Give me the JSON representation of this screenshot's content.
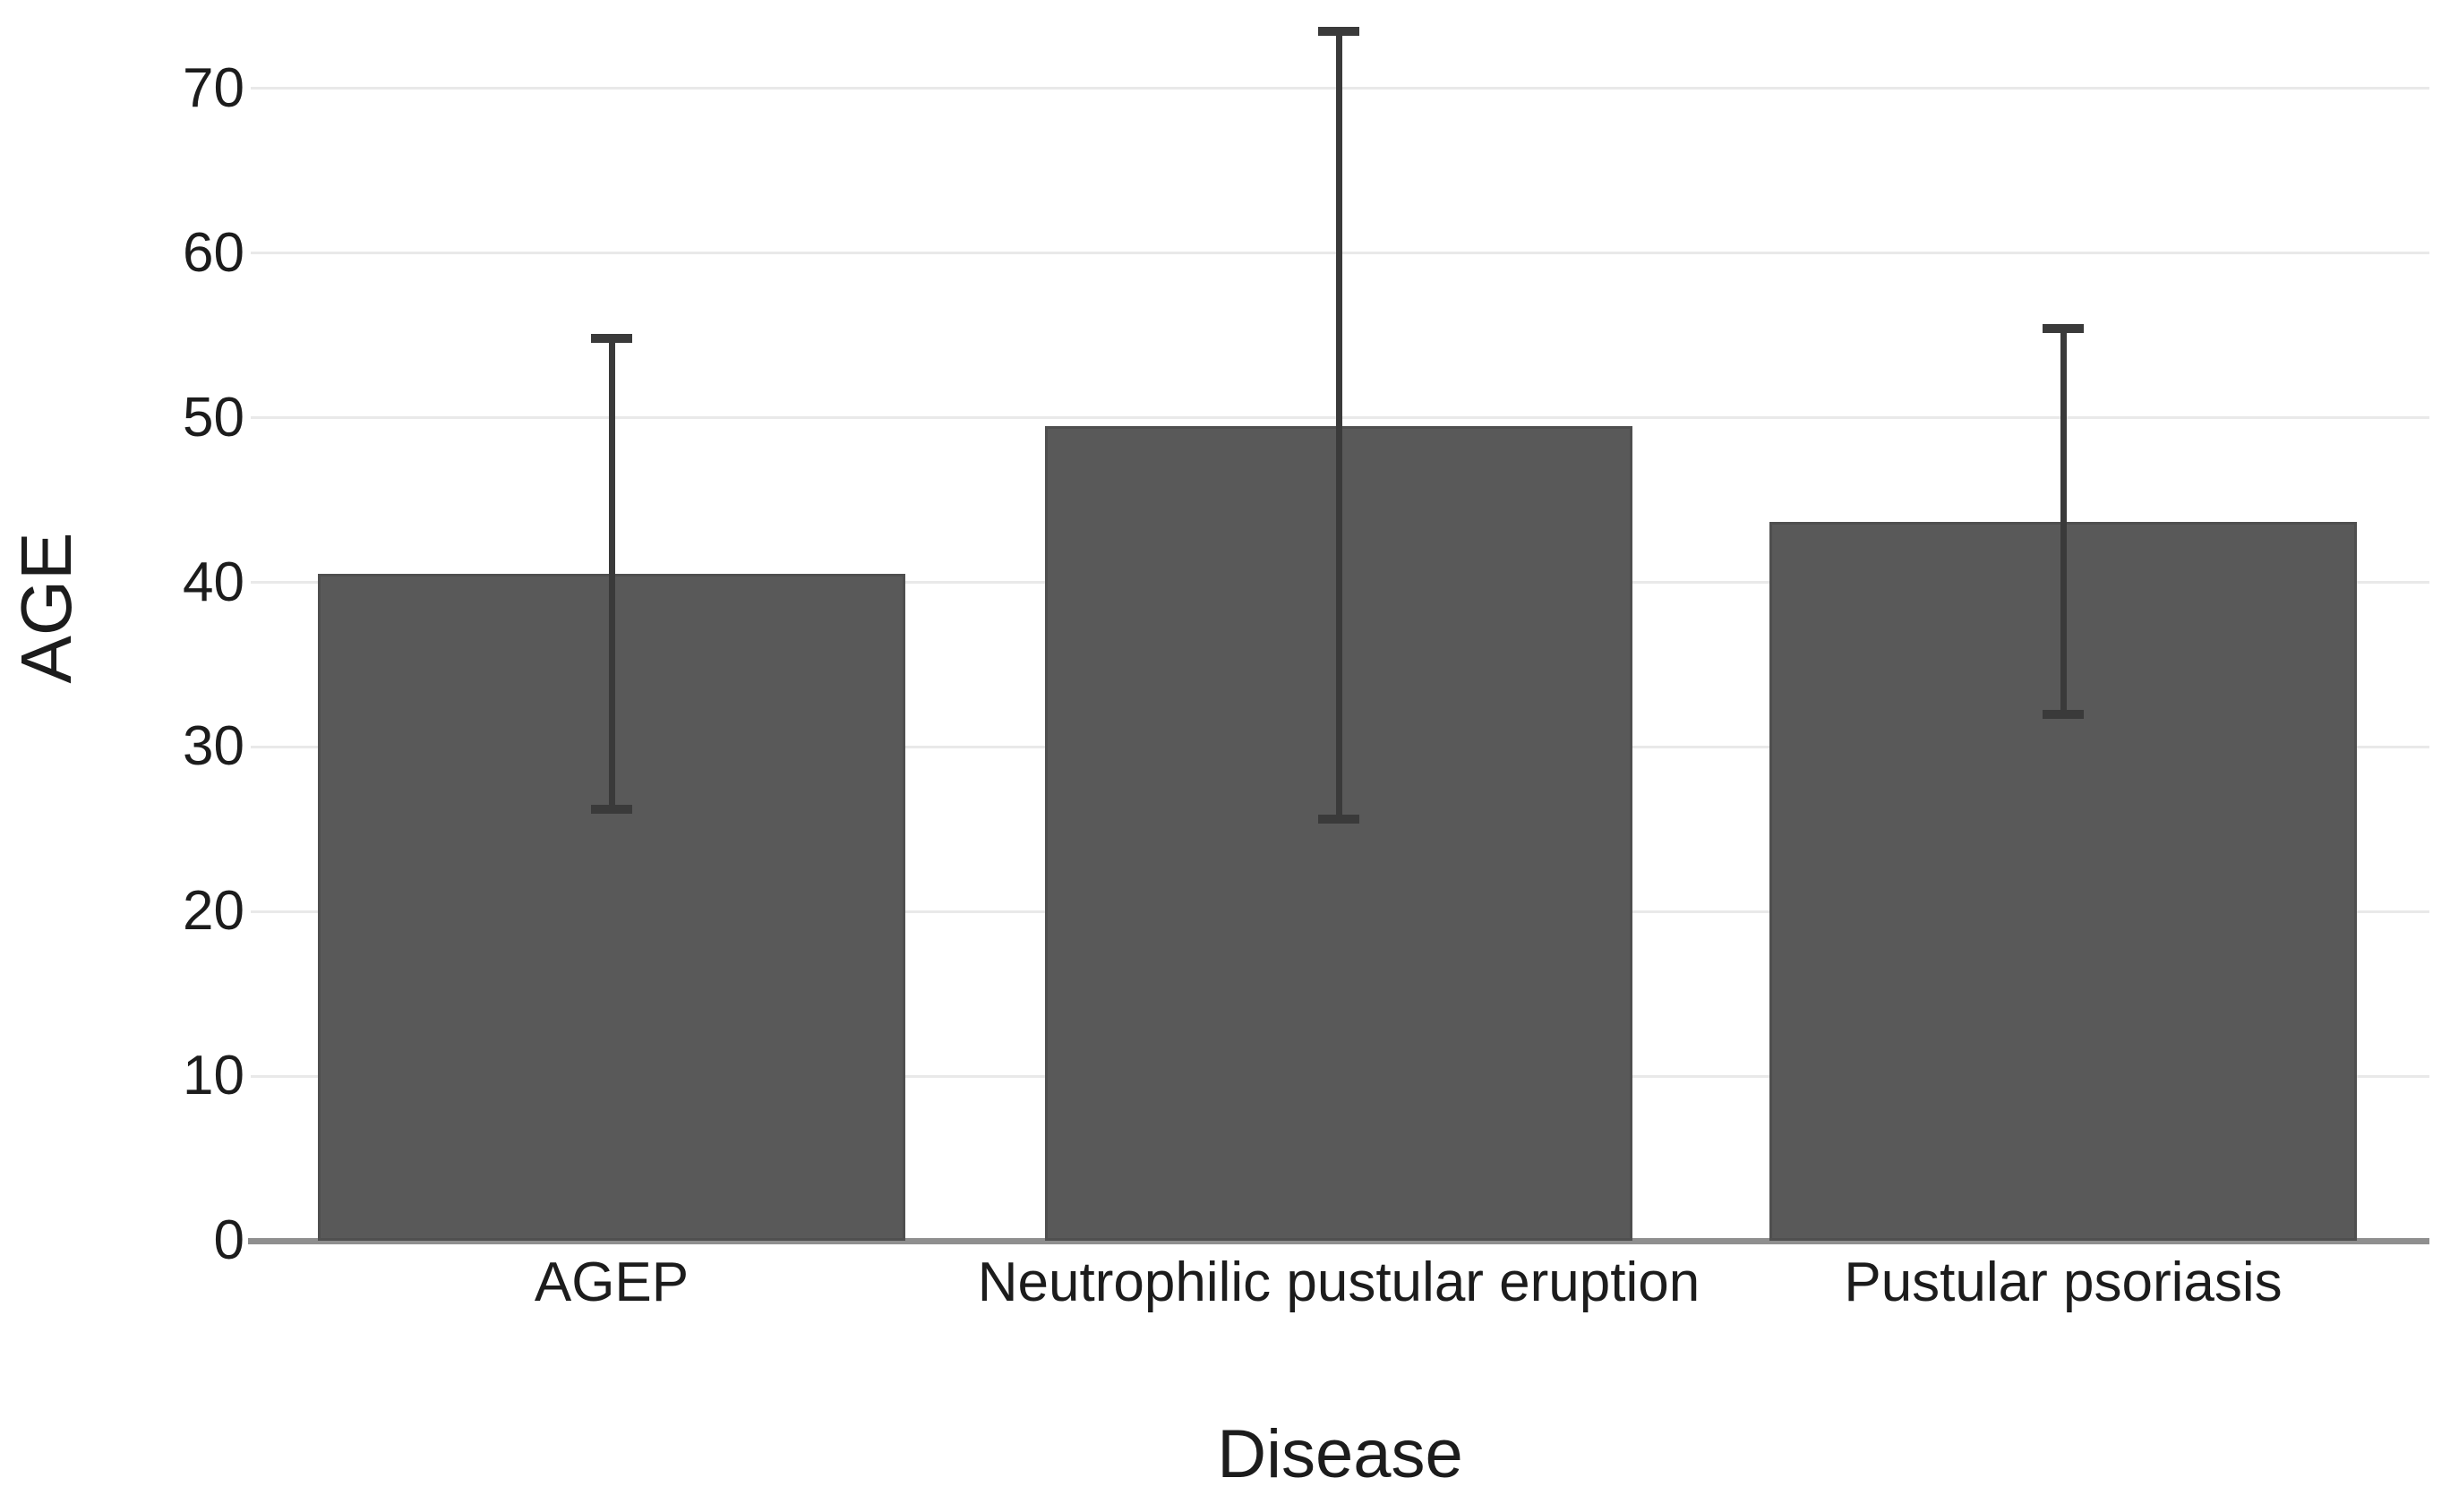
{
  "chart_data": {
    "type": "bar",
    "title": "",
    "categories": [
      "AGEP",
      "Neutrophilic pustular eruption",
      "Pustular psoriasis"
    ],
    "values": [
      40.5,
      49.5,
      43.7
    ],
    "error_bars": [
      {
        "low": 26.2,
        "high": 54.8
      },
      {
        "low": 25.6,
        "high": 73.5
      },
      {
        "low": 32.0,
        "high": 55.4
      }
    ],
    "xlabel": "Disease",
    "ylabel": "AGE",
    "y_ticks": [
      0,
      10,
      20,
      30,
      40,
      50,
      60,
      70
    ],
    "ylim": [
      0,
      75
    ],
    "grid": "horizontal-major",
    "legend": "none",
    "colors": {
      "bar_fill": "#595959",
      "error_bar": "#3a3a3a",
      "gridline": "#e9e9e9",
      "axis_line": "#8f8f8f",
      "text": "#1c1c1c",
      "background": "#ffffff"
    }
  }
}
